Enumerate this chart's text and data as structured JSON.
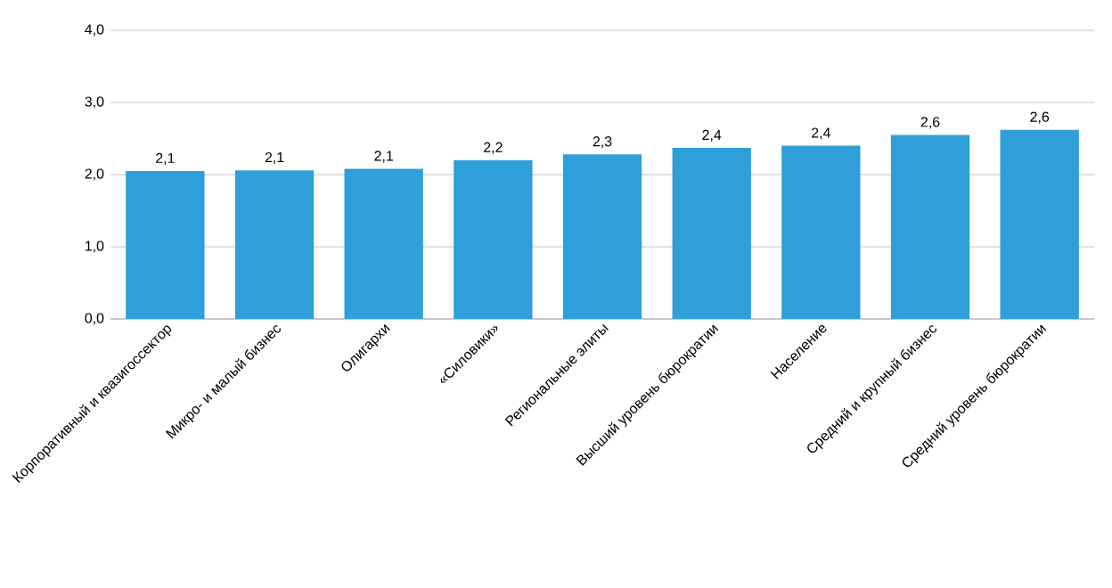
{
  "chart_data": {
    "type": "bar",
    "categories": [
      "Корпоративный и квазигоссектор",
      "Микро- и малый бизнес",
      "Олигархи",
      "«Силовики»",
      "Региональные элиты",
      "Высший уровень бюрократии",
      "Население",
      "Средний и крупный бизнес",
      "Средний уровень бюрократии"
    ],
    "values": [
      2.05,
      2.06,
      2.08,
      2.2,
      2.28,
      2.37,
      2.4,
      2.55,
      2.62
    ],
    "value_labels": [
      "2,1",
      "2,1",
      "2,1",
      "2,2",
      "2,3",
      "2,4",
      "2,4",
      "2,6",
      "2,6"
    ],
    "color": "#2e9fd8",
    "ylim": [
      0,
      4
    ],
    "yticks": [
      {
        "value": 0,
        "label": "0,0"
      },
      {
        "value": 1,
        "label": "1,0"
      },
      {
        "value": 2,
        "label": "2,0"
      },
      {
        "value": 3,
        "label": "3,0"
      },
      {
        "value": 4,
        "label": "4,0"
      }
    ],
    "grid": "y"
  }
}
